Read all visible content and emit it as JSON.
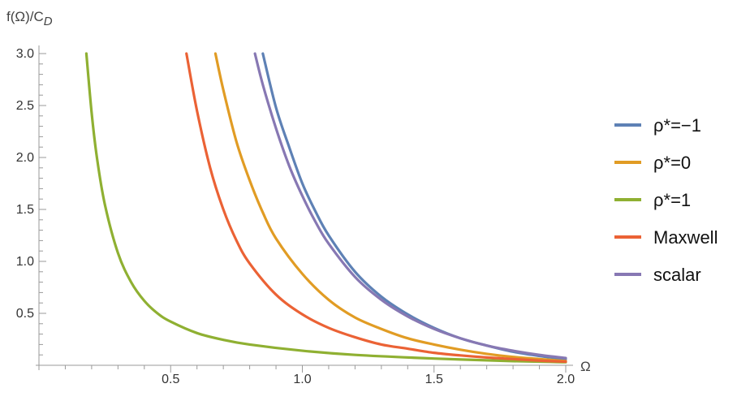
{
  "chart_data": {
    "type": "line",
    "ylabel": "f(Ω)/C",
    "ylabel_sub": "D",
    "xlabel": "Ω",
    "xlim": [
      0,
      2.0
    ],
    "ylim": [
      0,
      3.0
    ],
    "x_ticks": [
      0.5,
      1.0,
      1.5,
      2.0
    ],
    "x_tick_labels": [
      "0.5",
      "1.0",
      "1.5",
      "2.0"
    ],
    "y_ticks": [
      0.5,
      1.0,
      1.5,
      2.0,
      2.5,
      3.0
    ],
    "y_tick_labels": [
      "0.5",
      "1.0",
      "1.5",
      "2.0",
      "2.5",
      "3.0"
    ],
    "grid": false,
    "legend_position": "right",
    "series": [
      {
        "name": "ρ*=−1",
        "color": "#5E81B5",
        "x": [
          0.85,
          0.9,
          0.95,
          1.0,
          1.05,
          1.1,
          1.2,
          1.3,
          1.4,
          1.5,
          1.6,
          1.7,
          1.8,
          1.9,
          2.0
        ],
        "y": [
          3.0,
          2.48,
          2.1,
          1.75,
          1.48,
          1.25,
          0.9,
          0.66,
          0.49,
          0.36,
          0.26,
          0.19,
          0.13,
          0.09,
          0.06
        ]
      },
      {
        "name": "ρ*=0",
        "color": "#E19C24",
        "x": [
          0.67,
          0.7,
          0.75,
          0.8,
          0.85,
          0.9,
          1.0,
          1.1,
          1.2,
          1.3,
          1.4,
          1.5,
          1.6,
          1.7,
          1.8,
          1.9,
          2.0
        ],
        "y": [
          3.0,
          2.65,
          2.15,
          1.78,
          1.47,
          1.22,
          0.88,
          0.63,
          0.46,
          0.35,
          0.26,
          0.2,
          0.15,
          0.11,
          0.08,
          0.06,
          0.04
        ]
      },
      {
        "name": "ρ*=1",
        "color": "#8FB032",
        "x": [
          0.18,
          0.2,
          0.22,
          0.25,
          0.3,
          0.35,
          0.4,
          0.45,
          0.5,
          0.6,
          0.7,
          0.8,
          1.0,
          1.2,
          1.5,
          1.8,
          2.0
        ],
        "y": [
          3.0,
          2.43,
          2.0,
          1.55,
          1.08,
          0.8,
          0.62,
          0.5,
          0.42,
          0.31,
          0.245,
          0.2,
          0.14,
          0.1,
          0.065,
          0.04,
          0.03
        ]
      },
      {
        "name": "Maxwell",
        "color": "#EB6235",
        "x": [
          0.56,
          0.6,
          0.65,
          0.7,
          0.75,
          0.8,
          0.9,
          1.0,
          1.1,
          1.2,
          1.3,
          1.4,
          1.5,
          1.6,
          1.7,
          1.8,
          1.9,
          2.0
        ],
        "y": [
          3.0,
          2.45,
          1.9,
          1.5,
          1.2,
          0.98,
          0.68,
          0.49,
          0.36,
          0.27,
          0.2,
          0.16,
          0.12,
          0.095,
          0.075,
          0.06,
          0.045,
          0.035
        ]
      },
      {
        "name": "scalar",
        "color": "#8778B3",
        "x": [
          0.82,
          0.85,
          0.9,
          0.95,
          1.0,
          1.05,
          1.1,
          1.2,
          1.3,
          1.4,
          1.5,
          1.6,
          1.7,
          1.8,
          1.9,
          2.0
        ],
        "y": [
          3.0,
          2.7,
          2.28,
          1.92,
          1.63,
          1.38,
          1.17,
          0.85,
          0.63,
          0.47,
          0.35,
          0.26,
          0.19,
          0.14,
          0.1,
          0.07
        ]
      }
    ]
  }
}
